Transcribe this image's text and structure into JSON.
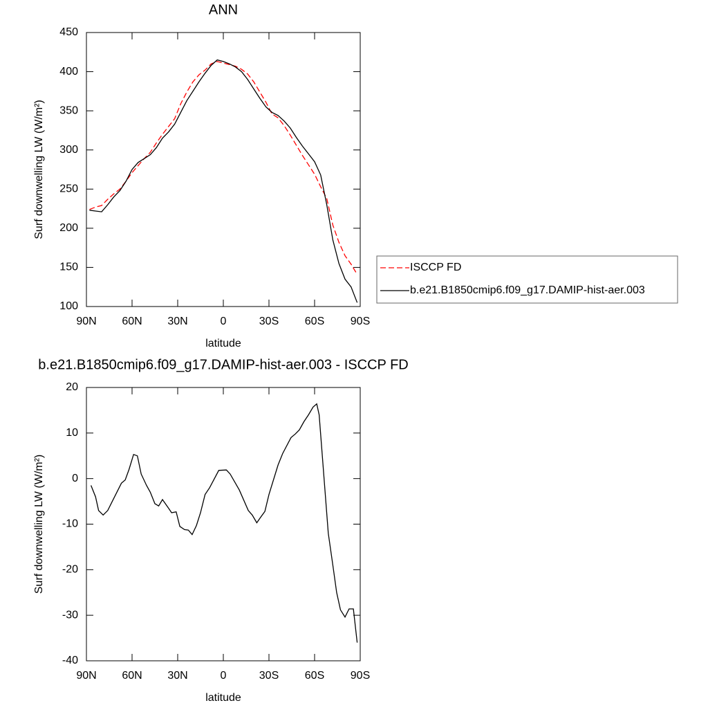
{
  "chart_data": [
    {
      "type": "line",
      "title": "ANN",
      "xlabel": "latitude",
      "ylabel": "Surf downwelling LW (W/m²)",
      "x": [
        88,
        84,
        80,
        76,
        72,
        68,
        64,
        60,
        56,
        52,
        48,
        44,
        40,
        36,
        32,
        28,
        24,
        20,
        16,
        12,
        8,
        4,
        0,
        -4,
        -8,
        -12,
        -16,
        -20,
        -24,
        -28,
        -32,
        -36,
        -40,
        -44,
        -48,
        -52,
        -56,
        -60,
        -64,
        -68,
        -72,
        -76,
        -80,
        -84,
        -88
      ],
      "series": [
        {
          "name": "ISCCP FD",
          "color": "#ff0000",
          "style": "dashed",
          "values": [
            224,
            227,
            229,
            237,
            244,
            250,
            260,
            271,
            280,
            289,
            297,
            309,
            320,
            330,
            340,
            359,
            374,
            387,
            396,
            402,
            410,
            413,
            411,
            409,
            407,
            403,
            397,
            387,
            374,
            361,
            346,
            341,
            331,
            319,
            306,
            293,
            281,
            269,
            253,
            238,
            204,
            182,
            165,
            154,
            141
          ]
        },
        {
          "name": "b.e21.B1850cmip6.f09_g17.DAMIP-hist-aer.003",
          "color": "#000000",
          "style": "solid",
          "values": [
            223,
            222,
            221,
            230,
            240,
            248,
            260,
            275,
            284,
            289,
            294,
            303,
            315,
            323,
            333,
            348,
            363,
            375,
            387,
            398,
            408,
            415,
            413,
            410,
            406,
            400,
            390,
            378,
            366,
            355,
            348,
            344,
            337,
            328,
            316,
            305,
            295,
            285,
            268,
            230,
            185,
            155,
            135,
            125,
            105
          ]
        }
      ],
      "xlim": [
        90,
        -90
      ],
      "xticks": [
        {
          "value": 90,
          "label": "90N"
        },
        {
          "value": 60,
          "label": "60N"
        },
        {
          "value": 30,
          "label": "30N"
        },
        0,
        {
          "value": -30,
          "label": "30S"
        },
        {
          "value": -60,
          "label": "60S"
        },
        {
          "value": -90,
          "label": "90S"
        }
      ],
      "ylim": [
        100,
        450
      ],
      "yticks": [
        100,
        150,
        200,
        250,
        300,
        350,
        400,
        450
      ],
      "legend": "right"
    },
    {
      "type": "line",
      "title": "b.e21.B1850cmip6.f09_g17.DAMIP-hist-aer.003 - ISCCP FD",
      "xlabel": "latitude",
      "ylabel": "Surf downwelling LW (W/m²)",
      "x": [
        87,
        84,
        82,
        79,
        76,
        73,
        67,
        64.5,
        62,
        59,
        56.5,
        54,
        50.5,
        48,
        45,
        42.5,
        40,
        36,
        34,
        31,
        28.6,
        25.5,
        23,
        20.5,
        17.7,
        15,
        12,
        9,
        3,
        -2,
        -4.5,
        -10.5,
        -16.4,
        -19,
        -22,
        -24.5,
        -27.3,
        -30,
        -36,
        -39,
        -44.5,
        -47.3,
        -50,
        -53,
        -56,
        -59,
        -61.4,
        -63,
        -69,
        -72,
        -74.5,
        -77,
        -80,
        -82.7,
        -85.5,
        -88
      ],
      "values": [
        -1.5,
        -4,
        -7,
        -8,
        -7,
        -5,
        -1,
        -0.3,
        2,
        5.3,
        5,
        1,
        -1.5,
        -3,
        -5.5,
        -6,
        -4.6,
        -6.5,
        -7.5,
        -7.3,
        -10.5,
        -11.2,
        -11.3,
        -12.3,
        -10.3,
        -7.5,
        -3.5,
        -2,
        1.8,
        1.9,
        1,
        -2.5,
        -7,
        -8,
        -9.7,
        -8.5,
        -7.2,
        -3.5,
        3,
        5.5,
        9,
        9.8,
        10.7,
        12.5,
        14,
        15.7,
        16.4,
        14,
        -12,
        -19,
        -25,
        -28.8,
        -30.4,
        -28.6,
        -28.6,
        -36
      ],
      "color": "#000000",
      "xlim": [
        90,
        -90
      ],
      "xticks": [
        {
          "value": 90,
          "label": "90N"
        },
        {
          "value": 60,
          "label": "60N"
        },
        {
          "value": 30,
          "label": "30N"
        },
        0,
        {
          "value": -30,
          "label": "30S"
        },
        {
          "value": -60,
          "label": "60S"
        },
        {
          "value": -90,
          "label": "90S"
        }
      ],
      "ylim": [
        -40,
        20
      ],
      "yticks": [
        -40,
        -30,
        -20,
        -10,
        0,
        10,
        20
      ]
    }
  ]
}
